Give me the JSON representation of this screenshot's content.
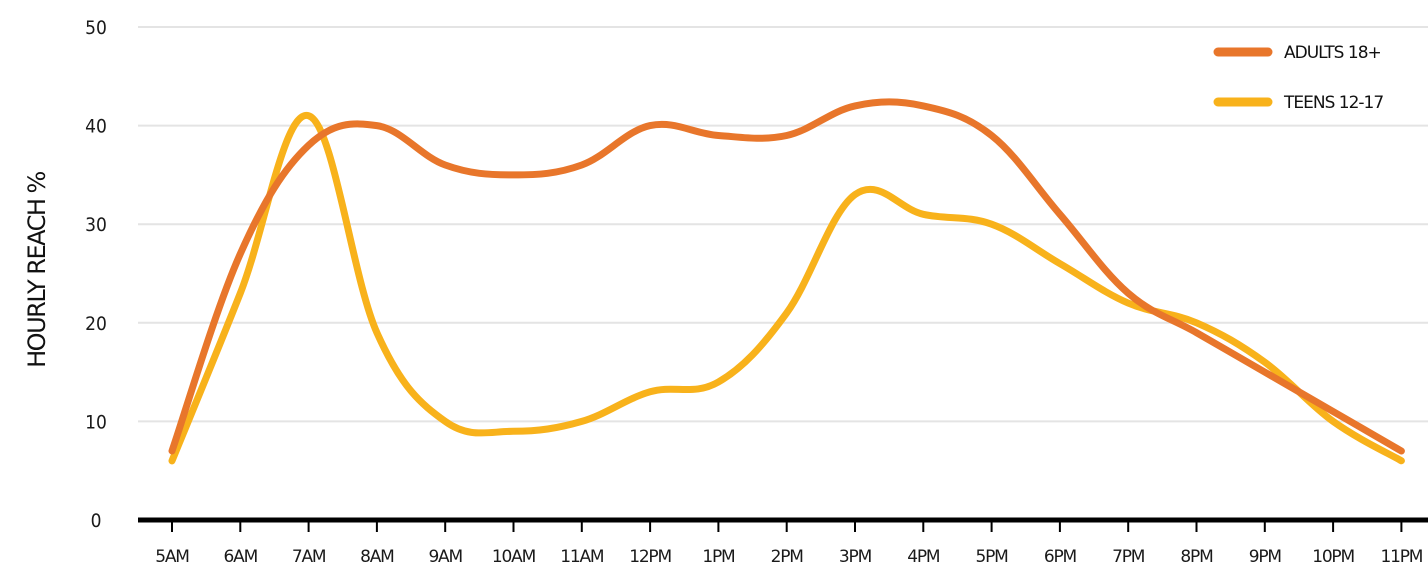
{
  "chart_data": {
    "type": "line",
    "title": "",
    "xlabel": "",
    "ylabel": "HOURLY REACH %",
    "ylim": [
      0,
      50
    ],
    "yticks": [
      "0",
      "10",
      "20",
      "30",
      "40",
      "50"
    ],
    "categories": [
      "5AM",
      "6AM",
      "7AM",
      "8AM",
      "9AM",
      "10AM",
      "11AM",
      "12PM",
      "1PM",
      "2PM",
      "3PM",
      "4PM",
      "5PM",
      "6PM",
      "7PM",
      "8PM",
      "9PM",
      "10PM",
      "11PM"
    ],
    "grid": true,
    "legend_position": "top-right",
    "series": [
      {
        "name": "ADULTS 18+",
        "color": "#E8762B",
        "values": [
          7,
          27,
          38,
          40,
          36,
          35,
          36,
          40,
          39,
          39,
          42,
          42,
          39,
          31,
          23,
          19,
          15,
          11,
          7
        ]
      },
      {
        "name": "TEENS 12-17",
        "color": "#F8B21B",
        "values": [
          6,
          23,
          41,
          19,
          10,
          9,
          10,
          13,
          14,
          21,
          33,
          31,
          30,
          26,
          22,
          20,
          16,
          10,
          6
        ]
      }
    ]
  }
}
